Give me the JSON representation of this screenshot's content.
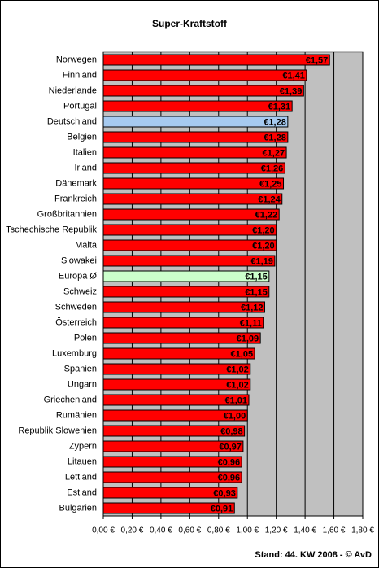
{
  "chart_data": {
    "type": "bar",
    "orientation": "horizontal",
    "title": "Super-Kraftstoff",
    "categories": [
      "Norwegen",
      "Finnland",
      "Niederlande",
      "Portugal",
      "Deutschland",
      "Belgien",
      "Italien",
      "Irland",
      "Dänemark",
      "Frankreich",
      "Großbritannien",
      "Tschechische Republik",
      "Malta",
      "Slowakei",
      "Europa Ø",
      "Schweiz",
      "Schweden",
      "Österreich",
      "Polen",
      "Luxemburg",
      "Spanien",
      "Ungarn",
      "Griechenland",
      "Rumänien",
      "Republik Slowenien",
      "Zypern",
      "Litauen",
      "Lettland",
      "Estland",
      "Bulgarien"
    ],
    "values": [
      1.57,
      1.41,
      1.39,
      1.31,
      1.28,
      1.28,
      1.27,
      1.26,
      1.25,
      1.24,
      1.22,
      1.2,
      1.2,
      1.19,
      1.15,
      1.15,
      1.12,
      1.11,
      1.09,
      1.05,
      1.02,
      1.02,
      1.01,
      1.0,
      0.98,
      0.97,
      0.96,
      0.96,
      0.93,
      0.91
    ],
    "value_labels": [
      "€1,57",
      "€1,41",
      "€1,39",
      "€1,31",
      "€1,28",
      "€1,28",
      "€1,27",
      "€1,26",
      "€1,25",
      "€1,24",
      "€1,22",
      "€1,20",
      "€1,20",
      "€1,19",
      "€1,15",
      "€1,15",
      "€1,12",
      "€1,11",
      "€1,09",
      "€1,05",
      "€1,02",
      "€1,02",
      "€1,01",
      "€1,00",
      "€0,98",
      "€0,97",
      "€0,96",
      "€0,96",
      "€0,93",
      "€0,91"
    ],
    "colors": [
      "#ff0000",
      "#ff0000",
      "#ff0000",
      "#ff0000",
      "#a6caf0",
      "#ff0000",
      "#ff0000",
      "#ff0000",
      "#ff0000",
      "#ff0000",
      "#ff0000",
      "#ff0000",
      "#ff0000",
      "#ff0000",
      "#ccffcc",
      "#ff0000",
      "#ff0000",
      "#ff0000",
      "#ff0000",
      "#ff0000",
      "#ff0000",
      "#ff0000",
      "#ff0000",
      "#ff0000",
      "#ff0000",
      "#ff0000",
      "#ff0000",
      "#ff0000",
      "#ff0000",
      "#ff0000"
    ],
    "xlim": [
      0,
      1.8
    ],
    "xticks": [
      {
        "value": 0,
        "label": "0,00 €"
      },
      {
        "value": 0.2,
        "label": "0,20 €"
      },
      {
        "value": 0.4,
        "label": "0,40 €"
      },
      {
        "value": 0.6,
        "label": "0,60 €"
      },
      {
        "value": 0.8,
        "label": "0,80 €"
      },
      {
        "value": 1.0,
        "label": "1,00 €"
      },
      {
        "value": 1.2,
        "label": "1,20 €"
      },
      {
        "value": 1.4,
        "label": "1,40 €"
      },
      {
        "value": 1.6,
        "label": "1,60 €"
      },
      {
        "value": 1.8,
        "label": "1,80 €"
      }
    ],
    "grid": true,
    "plot_background": "#c0c0c0",
    "footnote": "Stand: 44. KW 2008 - © AvD"
  }
}
